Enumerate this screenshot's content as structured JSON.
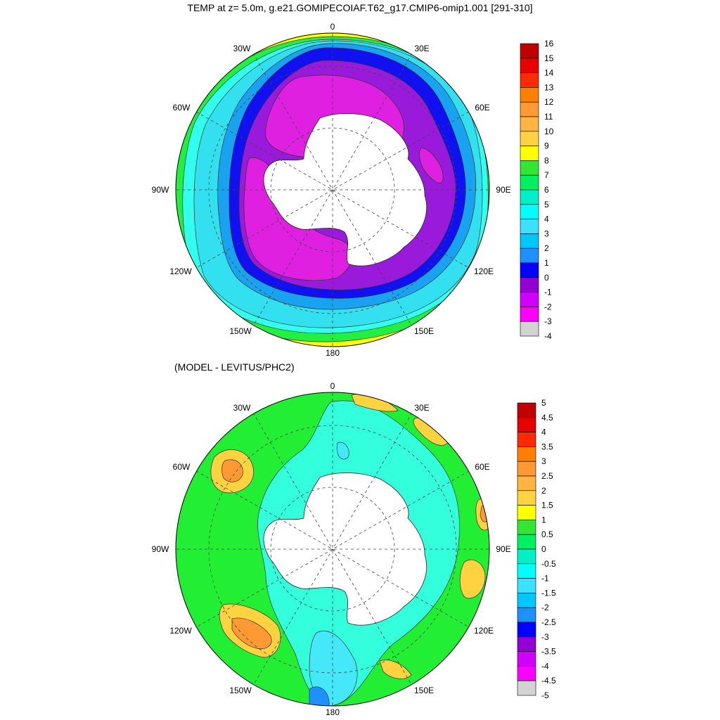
{
  "panels": [
    {
      "title": "TEMP at z=   5.0m, g.e21.GOMIPECOIAF.T62_g17.CMIP6-omip1.001 [291-310]",
      "lon_labels": [
        "0",
        "30E",
        "60E",
        "90E",
        "120E",
        "150E",
        "180",
        "150W",
        "120W",
        "90W",
        "60W",
        "30W"
      ],
      "colorbar": {
        "labels": [
          "16",
          "15",
          "14",
          "13",
          "12",
          "11",
          "10",
          "9",
          "8",
          "7",
          "6",
          "5",
          "4",
          "3",
          "2",
          "1",
          "0",
          "-1",
          "-2",
          "-3",
          "-4"
        ],
        "colors": [
          "#c00000",
          "#e60000",
          "#ff2a00",
          "#ff8000",
          "#ff9933",
          "#ffb43f",
          "#ffd23f",
          "#ffff00",
          "#33e633",
          "#00f060",
          "#00f0c8",
          "#00ffff",
          "#3ce1ff",
          "#00c8ff",
          "#1e90ff",
          "#0000ff",
          "#9400d3",
          "#d000ff",
          "#ff00ff",
          "#d3d3d3",
          "#707070"
        ]
      },
      "colors": {
        "coldest": "#e020e0",
        "purple": "#9a1adb",
        "blue": "#1010f0",
        "lightblue": "#19a2f0",
        "cyan": "#33e0f0",
        "aqua": "#33ffee",
        "green": "#22f040",
        "lightgreen": "#2fea5a",
        "yellow": "#ffff00",
        "land": "#ffffff"
      }
    },
    {
      "title": "(MODEL - LEVITUS/PHC2)",
      "lon_labels": [
        "0",
        "30E",
        "60E",
        "90E",
        "120E",
        "150E",
        "180",
        "150W",
        "120W",
        "90W",
        "60W",
        "30W"
      ],
      "colorbar": {
        "labels": [
          "5",
          "4.5",
          "4",
          "3.5",
          "3",
          "2.5",
          "2",
          "1.5",
          "1",
          "0.5",
          "0",
          "-0.5",
          "-1",
          "-1.5",
          "-2",
          "-2.5",
          "-3",
          "-3.5",
          "-4",
          "-4.5",
          "-5"
        ],
        "colors": [
          "#c00000",
          "#e60000",
          "#ff2a00",
          "#ff8000",
          "#ff9933",
          "#ffb43f",
          "#ffd23f",
          "#ffff00",
          "#33e633",
          "#00f060",
          "#00f0c8",
          "#00ffff",
          "#3ce1ff",
          "#00c8ff",
          "#1e90ff",
          "#0000ff",
          "#9400d3",
          "#d000ff",
          "#ff00ff",
          "#d3d3d3",
          "#707070"
        ]
      },
      "colors": {
        "green": "#22ee33",
        "lightgreen": "#44f044",
        "aqua": "#33ffdd",
        "cyan": "#44e8f8",
        "blue": "#1e90ff",
        "orange": "#ff9933",
        "yellow": "#ffd23f",
        "land": "#ffffff"
      }
    }
  ]
}
